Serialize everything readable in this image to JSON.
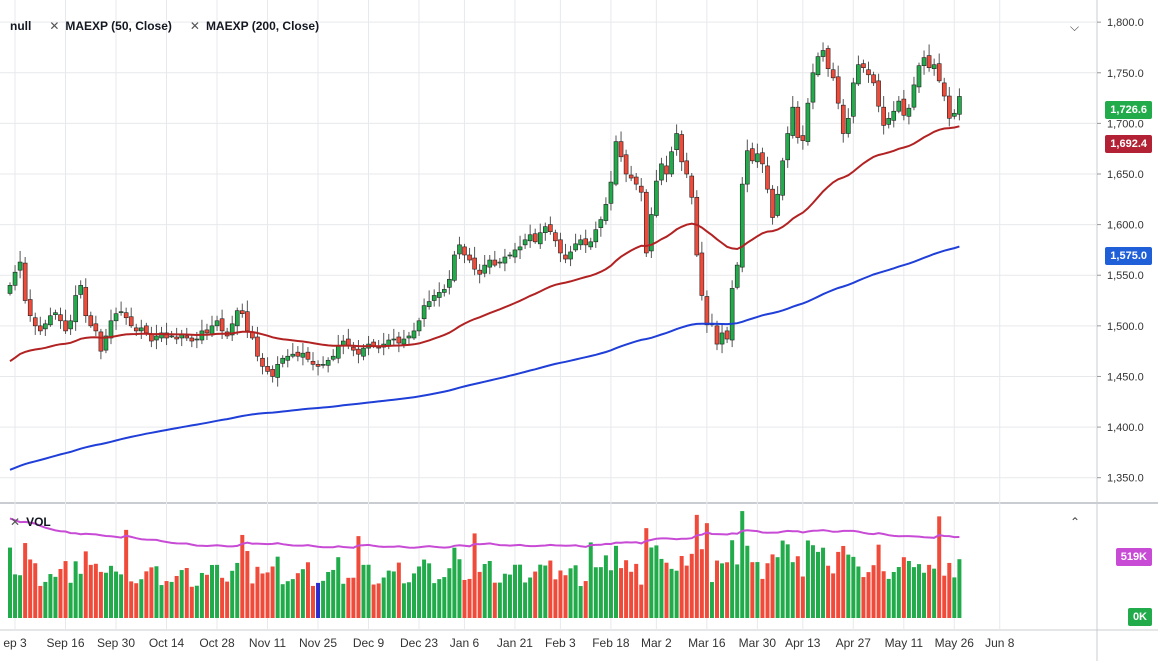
{
  "legend": {
    "symbol": "null",
    "ma50": "MAEXP (50, Close)",
    "ma200": "MAEXP (200, Close)"
  },
  "volume_legend": "VOL",
  "price_tags": {
    "last": "1,726.6",
    "ma50": "1,692.4",
    "ma200": "1,575.0",
    "vol": "519K",
    "vol_zero": "0K"
  },
  "colors": {
    "up": "#22ab4b",
    "down": "#f04a3a",
    "ma50": "#b22222",
    "ma200": "#1f3fd8",
    "vol_ma": "#c84bd6",
    "highlight_bar": "#2b2bd0",
    "ma200_tag": "#1f5fd8",
    "ma50_tag": "#b22234",
    "last_tag": "#22ab4b"
  },
  "chart_data": {
    "type": "candlestick",
    "y_axis": {
      "min": 1325,
      "max": 1812,
      "ticks": [
        1350,
        1400,
        1450,
        1500,
        1550,
        1600,
        1650,
        1700,
        1750,
        1800
      ],
      "tick_labels": [
        "1,350.0",
        "1,400.0",
        "1,450.0",
        "1,500.0",
        "1,550.0",
        "1,600.0",
        "1,650.0",
        "1,700.0",
        "1,750.0",
        "1,800.0"
      ]
    },
    "x_axis": {
      "labels": [
        "ep 3",
        "Sep 16",
        "Sep 30",
        "Oct 14",
        "Oct 28",
        "Nov 11",
        "Nov 25",
        "Dec 9",
        "Dec 23",
        "Jan 6",
        "Jan 21",
        "Feb 3",
        "Feb 18",
        "Mar 2",
        "Mar 16",
        "Mar 30",
        "Apr 13",
        "Apr 27",
        "May 11",
        "May 26",
        "Jun 8"
      ],
      "label_index": [
        0,
        10,
        20,
        30,
        40,
        50,
        60,
        70,
        80,
        89,
        99,
        108,
        118,
        127,
        137,
        147,
        156,
        166,
        176,
        186,
        195
      ]
    },
    "volume_axis": {
      "max": 1000,
      "labels": [
        "519K",
        "0K"
      ]
    },
    "closes": [
      1540,
      1553,
      1563,
      1525,
      1510,
      1500,
      1495,
      1502,
      1510,
      1513,
      1505,
      1495,
      1505,
      1530,
      1540,
      1510,
      1500,
      1495,
      1475,
      1490,
      1505,
      1512,
      1514,
      1508,
      1500,
      1495,
      1498,
      1493,
      1485,
      1490,
      1493,
      1488,
      1490,
      1487,
      1492,
      1488,
      1485,
      1487,
      1495,
      1493,
      1500,
      1505,
      1495,
      1490,
      1502,
      1515,
      1512,
      1495,
      1488,
      1470,
      1460,
      1455,
      1450,
      1462,
      1468,
      1470,
      1472,
      1470,
      1473,
      1467,
      1462,
      1460,
      1462,
      1466,
      1470,
      1480,
      1485,
      1480,
      1476,
      1472,
      1478,
      1482,
      1480,
      1478,
      1482,
      1486,
      1487,
      1483,
      1487,
      1490,
      1495,
      1505,
      1520,
      1524,
      1530,
      1533,
      1536,
      1546,
      1570,
      1580,
      1570,
      1565,
      1556,
      1551,
      1560,
      1565,
      1560,
      1563,
      1568,
      1570,
      1575,
      1578,
      1585,
      1590,
      1583,
      1592,
      1598,
      1593,
      1584,
      1572,
      1566,
      1573,
      1581,
      1585,
      1580,
      1583,
      1595,
      1605,
      1620,
      1642,
      1682,
      1667,
      1650,
      1646,
      1640,
      1632,
      1572,
      1610,
      1643,
      1660,
      1650,
      1672,
      1690,
      1662,
      1650,
      1627,
      1570,
      1530,
      1501,
      1502,
      1482,
      1493,
      1487,
      1537,
      1560,
      1640,
      1673,
      1663,
      1670,
      1660,
      1635,
      1607,
      1630,
      1663,
      1690,
      1716,
      1686,
      1683,
      1720,
      1750,
      1766,
      1772,
      1754,
      1745,
      1720,
      1690,
      1705,
      1740,
      1758,
      1755,
      1748,
      1740,
      1717,
      1698,
      1705,
      1712,
      1722,
      1708,
      1715,
      1738,
      1757,
      1765,
      1755,
      1758,
      1742,
      1727,
      1705,
      1710,
      1726.6
    ],
    "series": [
      {
        "name": "MAEXP (50, Close)",
        "values_last": 1692.4
      },
      {
        "name": "MAEXP (200, Close)",
        "values_last": 1575.0
      }
    ]
  }
}
